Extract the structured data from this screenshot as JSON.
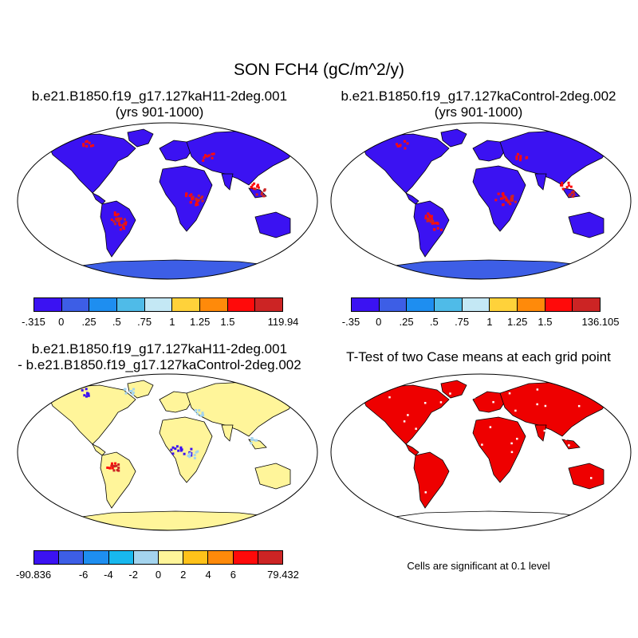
{
  "title": "SON FCH4 (gC/m^2/y)",
  "panels": [
    {
      "title1": "b.e21.B1850.f19_g17.127kaH11-2deg.001",
      "title2": "(yrs 901-1000)",
      "kind": "case"
    },
    {
      "title1": "b.e21.B1850.f19_g17.127kaControl-2deg.002",
      "title2": "(yrs 901-1000)",
      "kind": "case"
    },
    {
      "title1": "b.e21.B1850.f19_g17.127kaH11-2deg.001",
      "title2": "- b.e21.B1850.f19_g17.127kaControl-2deg.002",
      "kind": "diff"
    },
    {
      "title1": "T-Test of two Case means at each grid point",
      "title2": "",
      "kind": "ttest"
    }
  ],
  "colorbars": [
    {
      "colors": [
        "#3b12f2",
        "#3d5ee6",
        "#1e8ef0",
        "#4fbbe8",
        "#c4e8f5",
        "#ffd23a",
        "#ff8a0a",
        "#ff0a0a",
        "#cc2424"
      ],
      "labels": [
        "-.315",
        "0",
        ".25",
        ".5",
        ".75",
        "1",
        "1.25",
        "1.5",
        "119.94"
      ]
    },
    {
      "colors": [
        "#3b12f2",
        "#3d5ee6",
        "#1e8ef0",
        "#4fbbe8",
        "#c4e8f5",
        "#ffd23a",
        "#ff8a0a",
        "#ff0a0a",
        "#cc2424"
      ],
      "labels": [
        "-.35",
        "0",
        ".25",
        ".5",
        ".75",
        "1",
        "1.25",
        "1.5",
        "136.105"
      ]
    },
    {
      "colors": [
        "#3b12f2",
        "#3d5ee6",
        "#1e8ef0",
        "#18b8ee",
        "#a4d4ee",
        "#fff59a",
        "#ffc21a",
        "#ff8a0a",
        "#ff0a0a",
        "#cc2424"
      ],
      "labels": [
        "-90.836",
        "-6",
        "-4",
        "-2",
        "0",
        "2",
        "4",
        "6",
        "79.432"
      ]
    }
  ],
  "significance_note": "Cells are significant at 0.1 level",
  "palette": {
    "low": "#3b12f2",
    "mid": "#3d5ee6",
    "high": "#ff0a0a",
    "max": "#cc2424",
    "diff_zero": "#fff59a",
    "diff_neg": "#a4d4ee",
    "sig": "#ee0000"
  }
}
